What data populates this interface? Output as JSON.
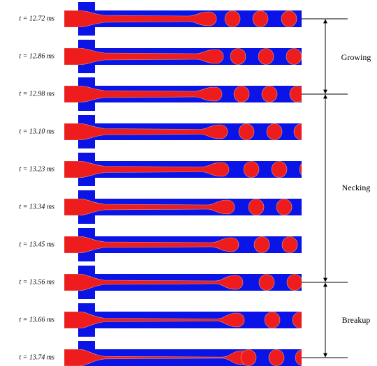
{
  "frames": [
    {
      "label": "t = 12.72 ms"
    },
    {
      "label": "t = 12.86 ms"
    },
    {
      "label": "t = 12.98 ms"
    },
    {
      "label": "t = 13.10 ms"
    },
    {
      "label": "t = 13.23 ms"
    },
    {
      "label": "t = 13.34 ms"
    },
    {
      "label": "t = 13.45 ms"
    },
    {
      "label": "t = 13.56 ms"
    },
    {
      "label": "t = 13.66 ms"
    },
    {
      "label": "t = 13.74 ms"
    }
  ],
  "phases": [
    {
      "label": "Growing"
    },
    {
      "label": "Necking"
    },
    {
      "label": "Breakup"
    }
  ]
}
